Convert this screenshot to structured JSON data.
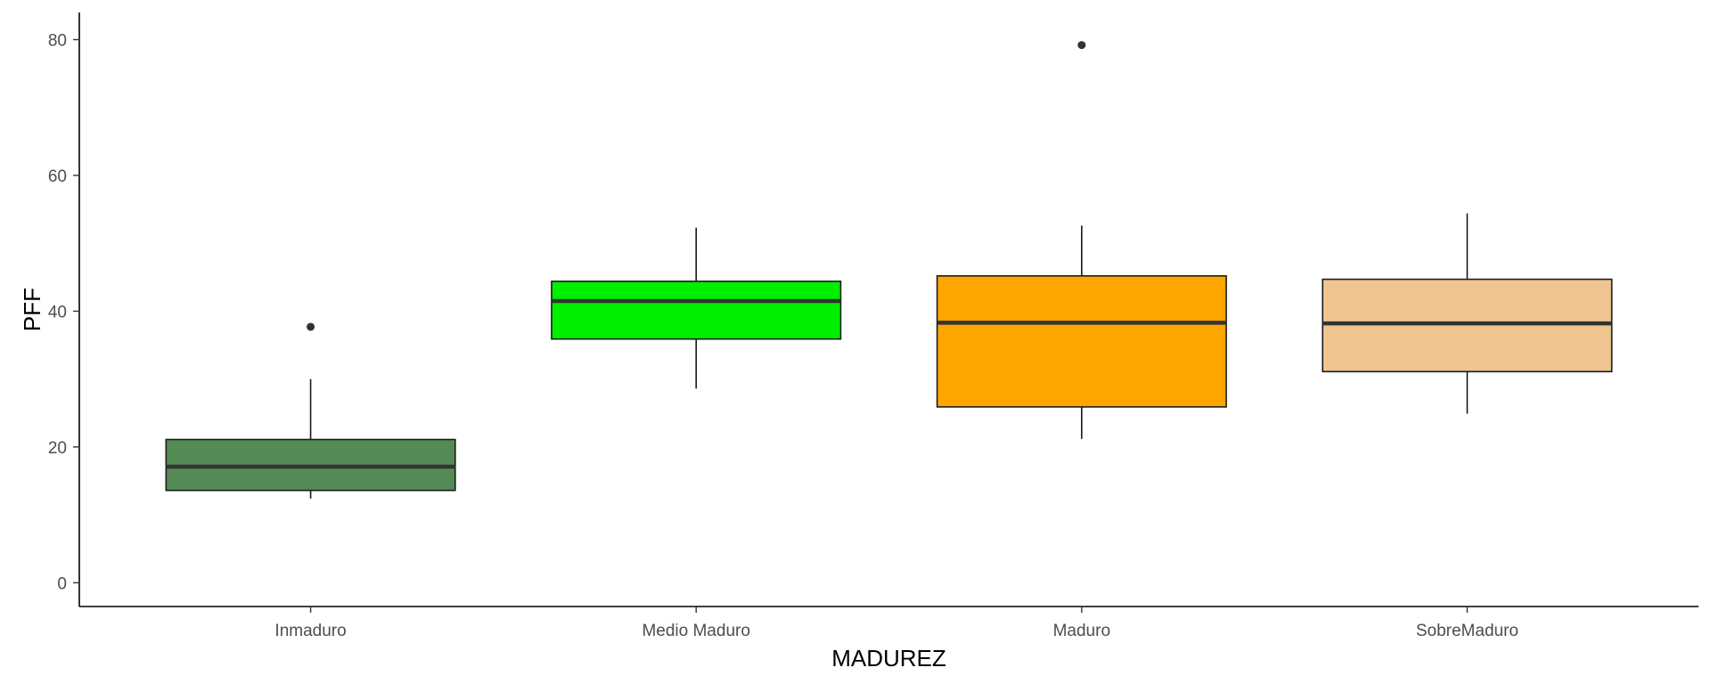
{
  "chart_data": {
    "type": "boxplot",
    "xlabel": "MADUREZ",
    "ylabel": "PFF",
    "ylim": [
      -3.5,
      84
    ],
    "yticks": [
      0,
      20,
      40,
      60,
      80
    ],
    "categories": [
      "Inmaduro",
      "Medio Maduro",
      "Maduro",
      "SobreMaduro"
    ],
    "boxes": [
      {
        "category": "Inmaduro",
        "whisker_low": 12.4,
        "q1": 13.6,
        "median": 17.1,
        "q3": 21.1,
        "whisker_high": 30.0,
        "outliers": [
          37.7
        ],
        "fill": "#548B54"
      },
      {
        "category": "Medio Maduro",
        "whisker_low": 28.6,
        "q1": 35.9,
        "median": 41.5,
        "q3": 44.4,
        "whisker_high": 52.3,
        "outliers": [],
        "fill": "#00EE00"
      },
      {
        "category": "Maduro",
        "whisker_low": 21.2,
        "q1": 25.9,
        "median": 38.3,
        "q3": 45.2,
        "whisker_high": 52.6,
        "outliers": [
          79.2
        ],
        "fill": "#FFA500"
      },
      {
        "category": "SobreMaduro",
        "whisker_low": 24.9,
        "q1": 31.1,
        "median": 38.2,
        "q3": 44.7,
        "whisker_high": 54.4,
        "outliers": [],
        "fill": "#EEC591"
      }
    ],
    "grid": false,
    "legend": "none"
  }
}
